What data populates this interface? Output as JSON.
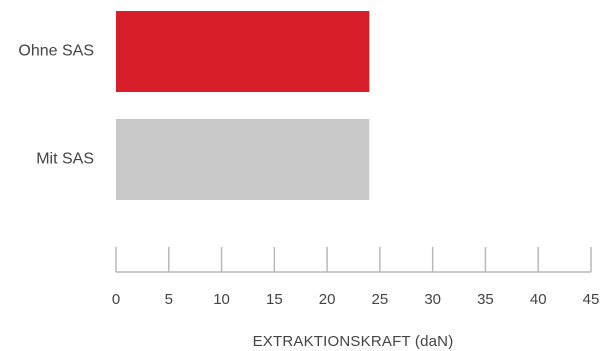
{
  "chart_data": {
    "type": "bar",
    "orientation": "horizontal",
    "categories": [
      "Ohne SAS",
      "Mit SAS"
    ],
    "values": [
      24,
      24
    ],
    "colors": [
      "#d81e28",
      "#c8c8c8"
    ],
    "xlabel": "EXTRAKTIONSKRAFT (daN)",
    "xlim": [
      0,
      45
    ],
    "xticks": [
      0,
      5,
      10,
      15,
      20,
      25,
      30,
      35,
      40,
      45
    ],
    "grid": false
  },
  "colors": {
    "axis": "#b9b9b9",
    "text": "#444444"
  }
}
